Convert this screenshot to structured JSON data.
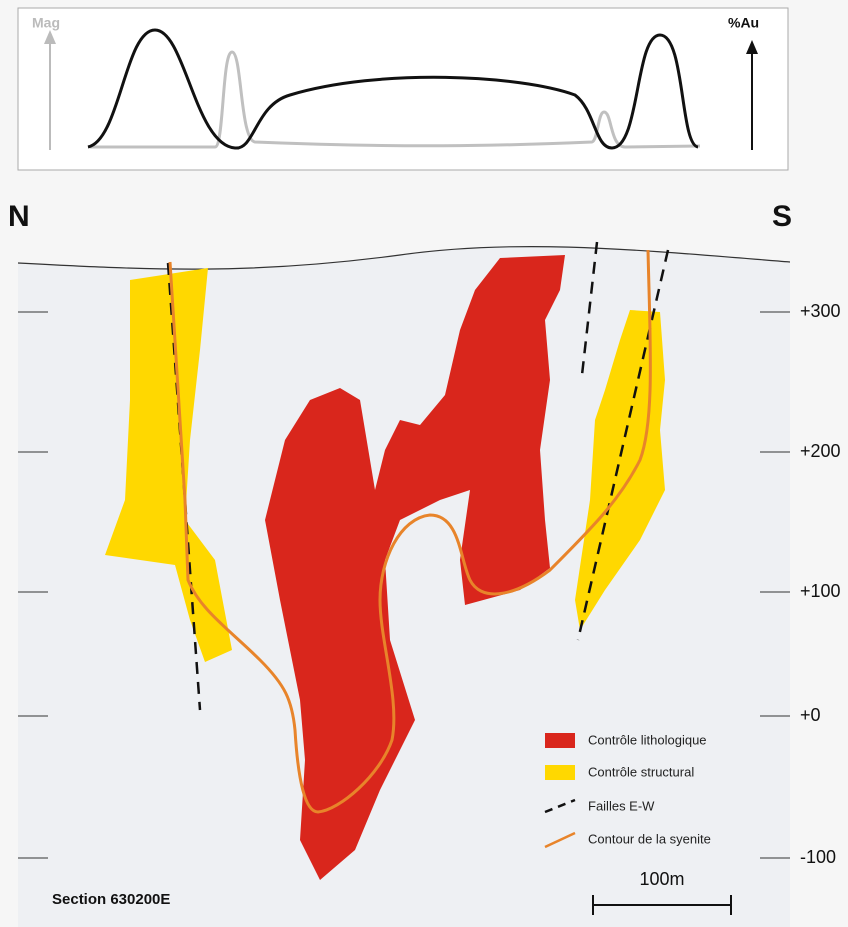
{
  "profile": {
    "mag_label": "Mag",
    "au_label": "%Au"
  },
  "section": {
    "north": "N",
    "south": "S",
    "elevations": [
      "+300",
      "+200",
      "+100",
      "+0",
      "-100"
    ],
    "name": "Section 630200E",
    "scale": "100m"
  },
  "legend": [
    "Contrôle lithologique",
    "Contrôle structural",
    "Failles E-W",
    "Contour de la syenite"
  ]
}
